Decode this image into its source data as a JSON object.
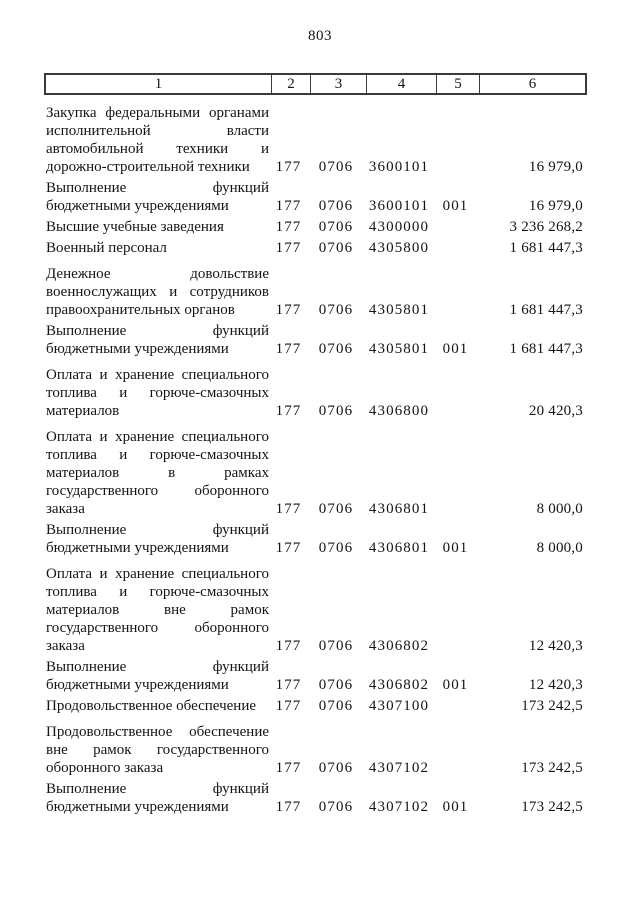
{
  "page_number": "803",
  "colors": {
    "text": "#141414",
    "border": "#3a3a3a",
    "background": "#ffffff"
  },
  "table": {
    "header_columns": [
      "1",
      "2",
      "3",
      "4",
      "5",
      "6"
    ],
    "rows": [
      {
        "lines": [
          "Закупка федеральными органами",
          "исполнительной власти",
          "автомобильной техники и",
          "дорожно-строительной техники"
        ],
        "vals": [
          "177",
          "0706",
          "3600101",
          "",
          "16 979,0"
        ],
        "spaced": false
      },
      {
        "lines": [
          "Выполнение функций",
          "бюджетными учреждениями"
        ],
        "vals": [
          "177",
          "0706",
          "3600101",
          "001",
          "16 979,0"
        ],
        "spaced": false
      },
      {
        "lines": [
          "Высшие учебные заведения"
        ],
        "vals": [
          "177",
          "0706",
          "4300000",
          "",
          "3 236 268,2"
        ],
        "spaced": false
      },
      {
        "lines": [
          "Военный персонал"
        ],
        "vals": [
          "177",
          "0706",
          "4305800",
          "",
          "1 681 447,3"
        ],
        "spaced": false
      },
      {
        "lines": [
          "Денежное довольствие",
          "военнослужащих и сотрудников",
          "правоохранительных органов"
        ],
        "vals": [
          "177",
          "0706",
          "4305801",
          "",
          "1 681 447,3"
        ],
        "spaced": true
      },
      {
        "lines": [
          "Выполнение функций",
          "бюджетными учреждениями"
        ],
        "vals": [
          "177",
          "0706",
          "4305801",
          "001",
          "1 681 447,3"
        ],
        "spaced": false
      },
      {
        "lines": [
          "Оплата и хранение специального",
          "топлива и горюче-смазочных",
          "материалов"
        ],
        "vals": [
          "177",
          "0706",
          "4306800",
          "",
          "20 420,3"
        ],
        "spaced": true
      },
      {
        "lines": [
          "Оплата и хранение специального",
          "топлива и горюче-смазочных",
          "материалов в рамках",
          "государственного оборонного",
          "заказа"
        ],
        "vals": [
          "177",
          "0706",
          "4306801",
          "",
          "8 000,0"
        ],
        "spaced": true
      },
      {
        "lines": [
          "Выполнение функций",
          "бюджетными учреждениями"
        ],
        "vals": [
          "177",
          "0706",
          "4306801",
          "001",
          "8 000,0"
        ],
        "spaced": false
      },
      {
        "lines": [
          "Оплата и хранение специального",
          "топлива и горюче-смазочных",
          "материалов вне рамок",
          "государственного оборонного",
          "заказа"
        ],
        "vals": [
          "177",
          "0706",
          "4306802",
          "",
          "12 420,3"
        ],
        "spaced": true
      },
      {
        "lines": [
          "Выполнение функций",
          "бюджетными учреждениями"
        ],
        "vals": [
          "177",
          "0706",
          "4306802",
          "001",
          "12 420,3"
        ],
        "spaced": false
      },
      {
        "lines": [
          "Продовольственное обеспечение"
        ],
        "vals": [
          "177",
          "0706",
          "4307100",
          "",
          "173 242,5"
        ],
        "spaced": false
      },
      {
        "lines": [
          "Продовольственное обеспечение",
          "вне рамок государственного",
          "оборонного заказа"
        ],
        "vals": [
          "177",
          "0706",
          "4307102",
          "",
          "173 242,5"
        ],
        "spaced": true
      },
      {
        "lines": [
          "Выполнение функций",
          "бюджетными учреждениями"
        ],
        "vals": [
          "177",
          "0706",
          "4307102",
          "001",
          "173 242,5"
        ],
        "spaced": false
      }
    ]
  }
}
